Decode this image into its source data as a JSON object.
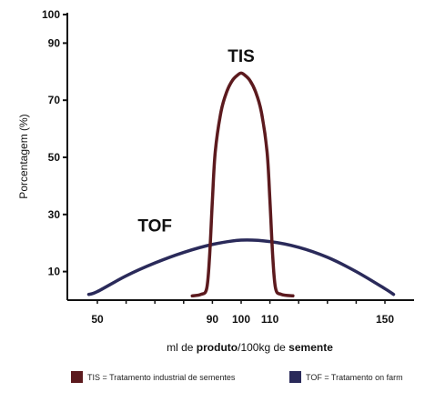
{
  "chart_data": {
    "type": "line",
    "xlabel_parts": [
      "ml de ",
      "produto",
      "/100kg de ",
      "semente"
    ],
    "ylabel": "Porcentagem (%)",
    "ylim": [
      0,
      100
    ],
    "y_ticks": [
      10,
      30,
      50,
      70,
      90,
      100
    ],
    "x_ticks": [
      50,
      90,
      100,
      110,
      150
    ],
    "xlim": [
      40,
      160
    ],
    "series": [
      {
        "name": "TIS",
        "color": "#5c1a1e",
        "x": [
          83,
          86,
          88,
          89,
          90,
          91,
          93,
          95,
          97,
          99,
          100,
          101,
          103,
          105,
          107,
          109,
          110,
          111,
          112,
          114,
          118
        ],
        "y": [
          1.5,
          2,
          4,
          15,
          35,
          52,
          66,
          73,
          77,
          79,
          79.5,
          79,
          77,
          73,
          66,
          52,
          35,
          15,
          4,
          2,
          1.5
        ]
      },
      {
        "name": "TOF",
        "color": "#2a2a5a",
        "x": [
          47,
          50,
          60,
          70,
          80,
          90,
          100,
          110,
          120,
          130,
          140,
          150,
          153
        ],
        "y": [
          2,
          3,
          8.5,
          13,
          16.7,
          19.5,
          21,
          20.5,
          18.5,
          15,
          10,
          4,
          2
        ]
      }
    ],
    "legend": [
      {
        "label": "TIS = Tratamento industrial de sementes",
        "color": "#5c1a1e"
      },
      {
        "label": "TOF = Tratamento on farm",
        "color": "#2a2a5a"
      }
    ]
  }
}
